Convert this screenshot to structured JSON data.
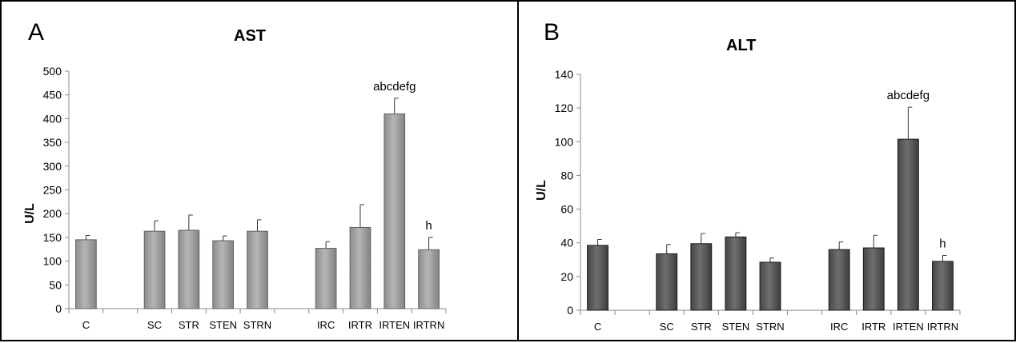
{
  "chart_data": [
    {
      "type": "bar",
      "panel_label": "A",
      "title": "AST",
      "ylabel": "U/L",
      "xlabel": "",
      "ylim": [
        0,
        500
      ],
      "yticks": [
        "0",
        "50",
        "100",
        "150",
        "200",
        "250",
        "300",
        "350",
        "400",
        "450",
        "500"
      ],
      "categories": [
        "C",
        "",
        "SC",
        "STR",
        "STEN",
        "STRN",
        "",
        "IRC",
        "IRTR",
        "IRTEN",
        "IRTRN"
      ],
      "values": [
        145,
        null,
        163,
        165,
        143,
        163,
        null,
        127,
        171,
        410,
        124
      ],
      "errors": [
        9,
        null,
        22,
        32,
        10,
        24,
        null,
        14,
        48,
        33,
        26
      ],
      "annotations": [
        "",
        "",
        "",
        "",
        "",
        "",
        "",
        "",
        "",
        "abcdefg",
        "h"
      ],
      "bar_color": "#a6a6a6",
      "grid": false,
      "legend": "none"
    },
    {
      "type": "bar",
      "panel_label": "B",
      "title": "ALT",
      "ylabel": "U/L",
      "xlabel": "",
      "ylim": [
        0,
        140
      ],
      "yticks": [
        "0",
        "20",
        "40",
        "60",
        "80",
        "100",
        "120",
        "140"
      ],
      "categories": [
        "C",
        "",
        "SC",
        "STR",
        "STEN",
        "STRN",
        "",
        "IRC",
        "IRTR",
        "IRTEN",
        "IRTRN"
      ],
      "values": [
        38.5,
        null,
        33.5,
        39.5,
        43.5,
        28.5,
        null,
        36,
        37,
        101.5,
        29
      ],
      "errors": [
        3.5,
        null,
        5.5,
        6,
        2.5,
        2.5,
        null,
        4.5,
        7.5,
        19,
        3.5
      ],
      "annotations": [
        "",
        "",
        "",
        "",
        "",
        "",
        "",
        "",
        "",
        "abcdefg",
        "h"
      ],
      "bar_color": "#606060",
      "grid": false,
      "legend": "none"
    }
  ]
}
